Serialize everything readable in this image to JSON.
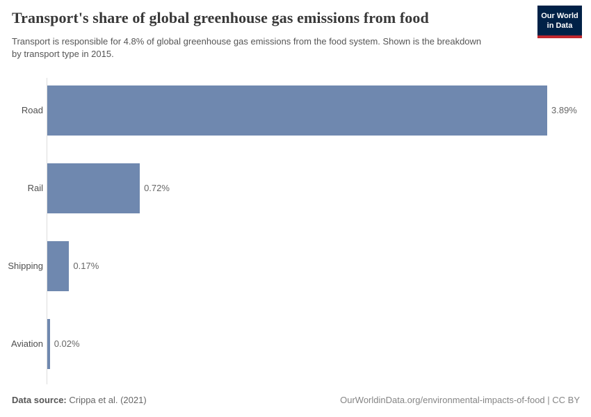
{
  "header": {
    "title": "Transport's share of global greenhouse gas emissions from food",
    "subtitle": "Transport is responsible for 4.8% of global greenhouse gas emissions from the food system. Shown is the breakdown by transport type in 2015."
  },
  "logo": {
    "line1": "Our World",
    "line2": "in Data",
    "background_color": "#002147",
    "accent_color": "#c0272d"
  },
  "chart_data": {
    "type": "bar",
    "orientation": "horizontal",
    "categories": [
      "Road",
      "Rail",
      "Shipping",
      "Aviation"
    ],
    "values": [
      3.89,
      0.72,
      0.17,
      0.02
    ],
    "value_labels": [
      "3.89%",
      "0.72%",
      "0.17%",
      "0.02%"
    ],
    "unit": "%",
    "title": "Transport's share of global greenhouse gas emissions from food",
    "xlabel": "",
    "ylabel": "",
    "xlim": [
      0,
      3.89
    ],
    "grid": false,
    "legend": false,
    "bar_color": "#6f88af",
    "axis_color": "#dddddd"
  },
  "footer": {
    "source_label": "Data source:",
    "source_text": " Crippa et al. (2021)",
    "link_text": "OurWorldinData.org/environmental-impacts-of-food | CC BY"
  }
}
